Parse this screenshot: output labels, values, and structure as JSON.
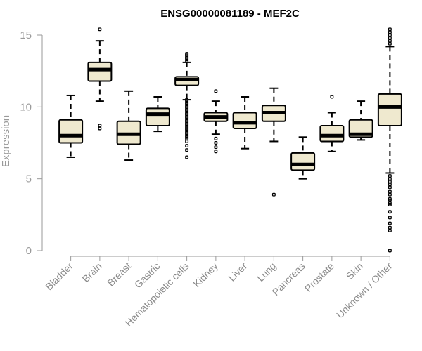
{
  "chart_data": {
    "type": "box",
    "title": "ENSG00000081189 - MEF2C",
    "xlabel": "",
    "ylabel": "Expression",
    "ylim": [
      0,
      15
    ],
    "yticks": [
      0,
      5,
      10,
      15
    ],
    "grid": false,
    "legend": "none",
    "box_fill": "#efe9cf",
    "categories": [
      "Bladder",
      "Brain",
      "Breast",
      "Gastric",
      "Hematopoietic cells",
      "Kidney",
      "Liver",
      "Lung",
      "Pancreas",
      "Prostate",
      "Skin",
      "Unknown / Other"
    ],
    "boxes": [
      {
        "name": "Bladder",
        "min": 6.5,
        "q1": 7.5,
        "median": 8.0,
        "q3": 9.1,
        "max": 10.8,
        "outliers": []
      },
      {
        "name": "Brain",
        "min": 10.4,
        "q1": 11.8,
        "median": 12.6,
        "q3": 13.1,
        "max": 14.6,
        "outliers": [
          15.4,
          8.7,
          8.5
        ]
      },
      {
        "name": "Breast",
        "min": 6.3,
        "q1": 7.4,
        "median": 8.1,
        "q3": 9.0,
        "max": 11.1,
        "outliers": []
      },
      {
        "name": "Gastric",
        "min": 8.3,
        "q1": 8.7,
        "median": 9.5,
        "q3": 9.9,
        "max": 10.7,
        "outliers": []
      },
      {
        "name": "Hematopoietic cells",
        "min": 10.5,
        "q1": 11.5,
        "median": 11.9,
        "q3": 12.1,
        "max": 13.1,
        "outliers": [
          13.7,
          13.6,
          13.5,
          13.4,
          13.3,
          13.2,
          10.5,
          10.4,
          10.3,
          10.2,
          10.1,
          10.0,
          9.9,
          9.8,
          9.7,
          9.6,
          9.5,
          9.4,
          9.3,
          9.2,
          9.1,
          9.0,
          8.9,
          8.8,
          8.7,
          8.6,
          8.5,
          8.4,
          8.3,
          8.2,
          8.1,
          8.0,
          7.9,
          7.8,
          7.6,
          7.3,
          7.0,
          6.5
        ]
      },
      {
        "name": "Kidney",
        "min": 8.1,
        "q1": 9.0,
        "median": 9.3,
        "q3": 9.6,
        "max": 10.4,
        "outliers": [
          11.1,
          7.8,
          7.5,
          7.2,
          6.9
        ]
      },
      {
        "name": "Liver",
        "min": 7.1,
        "q1": 8.5,
        "median": 8.9,
        "q3": 9.6,
        "max": 10.7,
        "outliers": []
      },
      {
        "name": "Lung",
        "min": 7.6,
        "q1": 9.0,
        "median": 9.6,
        "q3": 10.1,
        "max": 11.3,
        "outliers": [
          3.9
        ]
      },
      {
        "name": "Pancreas",
        "min": 5.0,
        "q1": 5.6,
        "median": 6.0,
        "q3": 6.8,
        "max": 7.9,
        "outliers": []
      },
      {
        "name": "Prostate",
        "min": 6.9,
        "q1": 7.6,
        "median": 8.0,
        "q3": 8.7,
        "max": 9.6,
        "outliers": [
          10.7
        ]
      },
      {
        "name": "Skin",
        "min": 7.7,
        "q1": 7.9,
        "median": 8.1,
        "q3": 9.1,
        "max": 10.4,
        "outliers": []
      },
      {
        "name": "Unknown / Other",
        "min": 5.4,
        "q1": 8.7,
        "median": 10.0,
        "q3": 10.9,
        "max": 14.2,
        "outliers": [
          15.4,
          15.2,
          15.0,
          14.8,
          14.6,
          14.4,
          5.2,
          5.0,
          4.8,
          4.6,
          4.4,
          4.1,
          3.9,
          3.6,
          3.5,
          3.3,
          3.2,
          2.7,
          2.3,
          1.9,
          1.6,
          1.4,
          0.0
        ]
      }
    ]
  }
}
